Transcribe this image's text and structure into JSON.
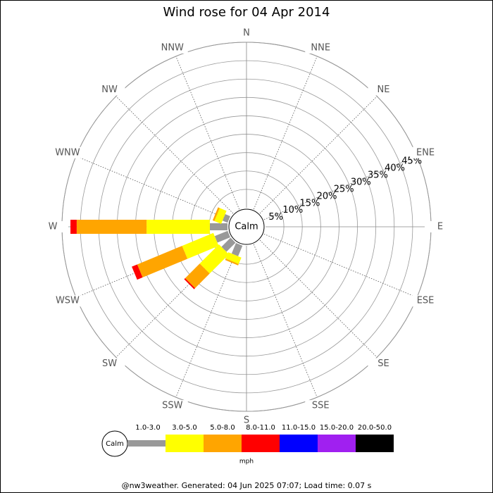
{
  "chart_data": {
    "type": "wind_rose",
    "title": "Wind rose for 04 Apr 2014",
    "directions": [
      "N",
      "NNE",
      "NE",
      "ENE",
      "E",
      "ESE",
      "SE",
      "SSE",
      "S",
      "SSW",
      "SW",
      "WSW",
      "W",
      "WNW",
      "NW",
      "NNW"
    ],
    "calm_label": "Calm",
    "rlim": [
      0,
      45
    ],
    "rticks": [
      {
        "value": 5,
        "label": "5%"
      },
      {
        "value": 10,
        "label": "10%"
      },
      {
        "value": 15,
        "label": "15%"
      },
      {
        "value": 20,
        "label": "20%"
      },
      {
        "value": 25,
        "label": "25%"
      },
      {
        "value": 30,
        "label": "30%"
      },
      {
        "value": 35,
        "label": "35%"
      },
      {
        "value": 40,
        "label": "40%"
      },
      {
        "value": 45,
        "label": "45%"
      }
    ],
    "series": [
      {
        "name": "1.0-3.0",
        "color": "#999999",
        "values": [
          0,
          0,
          0,
          0,
          0,
          0,
          0,
          0,
          0,
          3.1,
          3.5,
          3.8,
          4.8,
          1.5,
          0,
          0
        ]
      },
      {
        "name": "3.0-5.0",
        "color": "#ffff00",
        "values": [
          0,
          0,
          0,
          0,
          0,
          0,
          0,
          0,
          0,
          1.9,
          7.4,
          9.2,
          17.2,
          2.0,
          0,
          0
        ]
      },
      {
        "name": "5.0-8.0",
        "color": "#ffa500",
        "values": [
          0,
          0,
          0,
          0,
          0,
          0,
          0,
          0,
          0,
          0.4,
          5.6,
          13.2,
          19.0,
          0.5,
          0,
          0
        ]
      },
      {
        "name": "8.0-11.0",
        "color": "#ff0000",
        "values": [
          0,
          0,
          0,
          0,
          0,
          0,
          0,
          0,
          0,
          0,
          0.4,
          1.6,
          1.7,
          0,
          0,
          0
        ]
      },
      {
        "name": "11.0-15.0",
        "color": "#0000ff",
        "values": [
          0,
          0,
          0,
          0,
          0,
          0,
          0,
          0,
          0,
          0,
          0,
          0,
          0,
          0,
          0,
          0
        ]
      },
      {
        "name": "15.0-20.0",
        "color": "#a020f0",
        "values": [
          0,
          0,
          0,
          0,
          0,
          0,
          0,
          0,
          0,
          0,
          0,
          0,
          0,
          0,
          0,
          0
        ]
      },
      {
        "name": "20.0-50.0",
        "color": "#000000",
        "values": [
          0,
          0,
          0,
          0,
          0,
          0,
          0,
          0,
          0,
          0,
          0,
          0,
          0,
          0,
          0,
          0
        ]
      }
    ],
    "legend_unit": "mph",
    "footer": "@nw3weather. Generated: 04 Jun 2025 07:07; Load time: 0.07 s"
  }
}
